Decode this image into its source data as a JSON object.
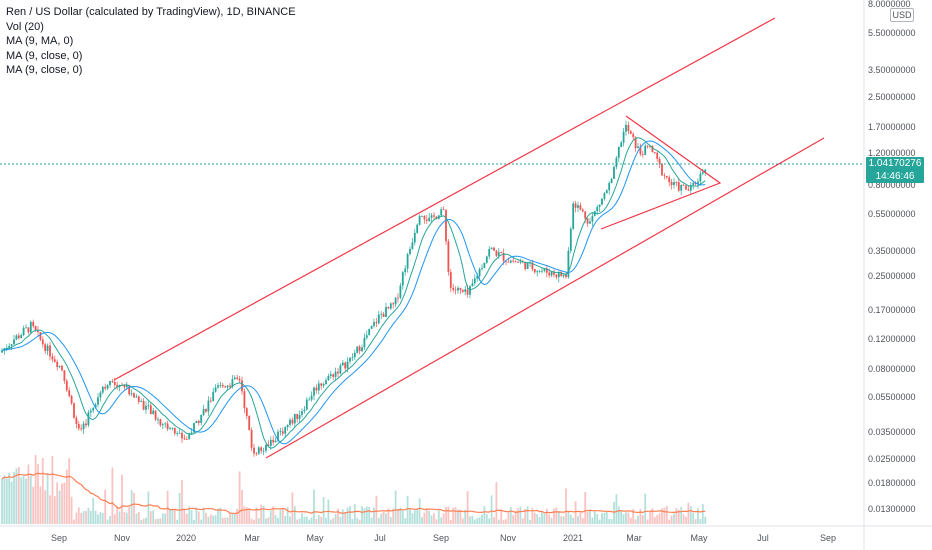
{
  "legend": {
    "title": "Ren / US Dollar (calculated by TradingView), 1D, BINANCE",
    "indicators": [
      "Vol (20)",
      "MA (9, MA, 0)",
      "MA (9, close, 0)",
      "MA (9, close, 0)"
    ]
  },
  "price_axis": {
    "currency": "USD",
    "labels": [
      "8.0000000",
      "5.50000000",
      "3.50000000",
      "2.50000000",
      "1.70000000",
      "1.20000000",
      "0.80000000",
      "0.55000000",
      "0.35000000",
      "0.25000000",
      "0.17000000",
      "0.12000000",
      "0.08000000",
      "0.05500000",
      "0.03500000",
      "0.02500000",
      "0.01800000",
      "0.01300000"
    ]
  },
  "time_axis": {
    "labels": [
      "Sep",
      "Nov",
      "2020",
      "Mar",
      "May",
      "Jul",
      "Sep",
      "Nov",
      "2021",
      "Mar",
      "May",
      "Jul",
      "Sep"
    ]
  },
  "current_price": {
    "value": "1.04170276",
    "countdown": "14:46:46"
  },
  "colors": {
    "up": "#26a69a",
    "down": "#ef5350",
    "ma_teal": "#26a69a",
    "ma_blue": "#2196f3",
    "trendline": "#f23645",
    "volume_ma": "#ff7f50",
    "price_line": "#26a69a"
  },
  "chart_data": {
    "type": "candlestick",
    "symbol": "Ren / US Dollar",
    "scale": "log",
    "ylim": [
      0.0115,
      8.0
    ],
    "key_prices": [
      {
        "date": "2019-08",
        "price": 0.1
      },
      {
        "date": "2019-09",
        "price": 0.14
      },
      {
        "date": "2019-10",
        "price": 0.046
      },
      {
        "date": "2019-11",
        "price": 0.066
      },
      {
        "date": "2020-01",
        "price": 0.032
      },
      {
        "date": "2020-02",
        "price": 0.062
      },
      {
        "date": "2020-03",
        "price": 0.028
      },
      {
        "date": "2020-05",
        "price": 0.062
      },
      {
        "date": "2020-07",
        "price": 0.16
      },
      {
        "date": "2020-08",
        "price": 0.58
      },
      {
        "date": "2020-09",
        "price": 0.22
      },
      {
        "date": "2020-11",
        "price": 0.31
      },
      {
        "date": "2020-12",
        "price": 0.27
      },
      {
        "date": "2021-01",
        "price": 0.65
      },
      {
        "date": "2021-02",
        "price": 1.7
      },
      {
        "date": "2021-03",
        "price": 1.2
      },
      {
        "date": "2021-04",
        "price": 0.8
      },
      {
        "date": "2021-05",
        "price": 1.04
      }
    ],
    "moving_averages": [
      "MA (9, MA, 0)",
      "MA (9, close, 0)",
      "MA (9, close, 0)"
    ],
    "volume": {
      "indicator": "Vol (20)"
    },
    "trendlines": [
      "upper channel",
      "lower channel",
      "symmetrical triangle"
    ],
    "legend_position": "top-left"
  }
}
